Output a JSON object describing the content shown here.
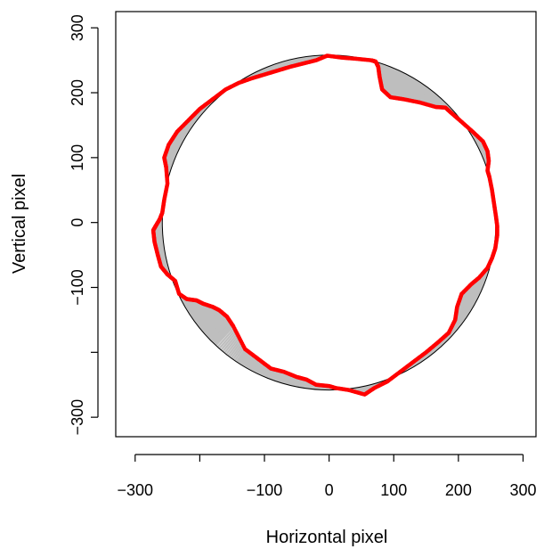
{
  "chart_data": {
    "type": "scatter",
    "title": "",
    "xlabel": "Horizontal pixel",
    "ylabel": "Vertical pixel",
    "xlim": [
      -330,
      320
    ],
    "ylim": [
      -330,
      325
    ],
    "x_ticks": [
      -300,
      -100,
      0,
      100,
      200,
      300
    ],
    "x_tick_labels": [
      "−300",
      "−100",
      "0",
      "100",
      "200",
      "300"
    ],
    "x_tick_marks": [
      -300,
      -200,
      -100,
      0,
      100,
      200,
      300
    ],
    "y_ticks": [
      -300,
      -100,
      0,
      100,
      200,
      300
    ],
    "y_tick_labels": [
      "−300",
      "−100",
      "0",
      "100",
      "200",
      "300"
    ],
    "y_tick_marks": [
      -300,
      -200,
      -100,
      0,
      100,
      200,
      300
    ],
    "grid": false,
    "legend": "none",
    "reference_circle": {
      "cx": 0,
      "cy": 0,
      "r": 258,
      "color": "#000000"
    },
    "series": [
      {
        "role": "measured-boundary",
        "color": "#ff0000",
        "points": [
          [
            -3,
            257
          ],
          [
            20,
            254
          ],
          [
            45,
            252
          ],
          [
            65,
            250
          ],
          [
            72,
            248
          ],
          [
            76,
            240
          ],
          [
            78,
            225
          ],
          [
            82,
            205
          ],
          [
            95,
            193
          ],
          [
            115,
            190
          ],
          [
            140,
            185
          ],
          [
            165,
            178
          ],
          [
            180,
            177
          ],
          [
            190,
            168
          ],
          [
            205,
            155
          ],
          [
            222,
            140
          ],
          [
            238,
            125
          ],
          [
            245,
            110
          ],
          [
            247,
            95
          ],
          [
            245,
            80
          ],
          [
            248,
            70
          ],
          [
            252,
            50
          ],
          [
            255,
            30
          ],
          [
            258,
            10
          ],
          [
            260,
            -5
          ],
          [
            260,
            -20
          ],
          [
            257,
            -40
          ],
          [
            252,
            -55
          ],
          [
            245,
            -70
          ],
          [
            232,
            -85
          ],
          [
            220,
            -95
          ],
          [
            205,
            -110
          ],
          [
            198,
            -130
          ],
          [
            195,
            -150
          ],
          [
            185,
            -170
          ],
          [
            168,
            -185
          ],
          [
            150,
            -200
          ],
          [
            130,
            -215
          ],
          [
            110,
            -230
          ],
          [
            90,
            -245
          ],
          [
            70,
            -255
          ],
          [
            55,
            -265
          ],
          [
            30,
            -258
          ],
          [
            10,
            -255
          ],
          [
            0,
            -252
          ],
          [
            -20,
            -250
          ],
          [
            -35,
            -242
          ],
          [
            -50,
            -238
          ],
          [
            -70,
            -230
          ],
          [
            -90,
            -225
          ],
          [
            -110,
            -210
          ],
          [
            -130,
            -195
          ],
          [
            -148,
            -160
          ],
          [
            -158,
            -145
          ],
          [
            -170,
            -135
          ],
          [
            -180,
            -130
          ],
          [
            -195,
            -125
          ],
          [
            -205,
            -120
          ],
          [
            -220,
            -118
          ],
          [
            -232,
            -110
          ],
          [
            -238,
            -90
          ],
          [
            -250,
            -80
          ],
          [
            -260,
            -68
          ],
          [
            -265,
            -50
          ],
          [
            -270,
            -30
          ],
          [
            -272,
            -12
          ],
          [
            -268,
            -5
          ],
          [
            -262,
            5
          ],
          [
            -258,
            15
          ],
          [
            -255,
            35
          ],
          [
            -250,
            60
          ],
          [
            -252,
            85
          ],
          [
            -255,
            100
          ],
          [
            -248,
            120
          ],
          [
            -235,
            140
          ],
          [
            -215,
            160
          ],
          [
            -200,
            175
          ],
          [
            -180,
            190
          ],
          [
            -160,
            205
          ],
          [
            -140,
            215
          ],
          [
            -120,
            222
          ],
          [
            -100,
            228
          ],
          [
            -80,
            234
          ],
          [
            -60,
            240
          ],
          [
            -40,
            245
          ],
          [
            -20,
            250
          ]
        ]
      }
    ]
  }
}
